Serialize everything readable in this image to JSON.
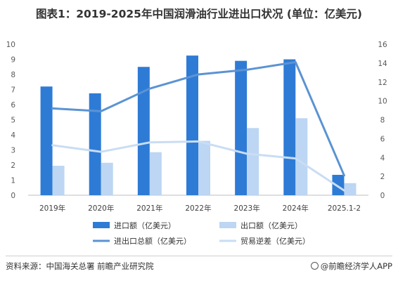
{
  "chart_data": {
    "type": "bar",
    "title": "图表1：2019-2025年中国润滑油行业进出口状况 (单位：亿美元)",
    "categories": [
      "2019年",
      "2020年",
      "2021年",
      "2022年",
      "2023年",
      "2024年",
      "2025.1-2"
    ],
    "y_left": {
      "min": 0,
      "max": 10,
      "ticks": [
        0,
        1,
        2,
        3,
        4,
        5,
        6,
        7,
        8,
        9,
        10
      ]
    },
    "y_right": {
      "min": 0,
      "max": 16,
      "ticks": [
        0,
        2,
        4,
        6,
        8,
        10,
        12,
        14,
        16
      ]
    },
    "bars": [
      {
        "name": "进口额（亿美元）",
        "axis": "left",
        "color": "#2e7bd6",
        "values": [
          7.2,
          6.75,
          8.5,
          9.25,
          8.9,
          9.0,
          1.35
        ]
      },
      {
        "name": "出口额（亿美元）",
        "axis": "left",
        "color": "#bcd6f3",
        "values": [
          1.95,
          2.15,
          2.85,
          3.6,
          4.45,
          5.1,
          0.8
        ]
      }
    ],
    "lines": [
      {
        "name": "进出口总额（亿美元）",
        "axis": "right",
        "color": "#5b93d3",
        "values": [
          9.2,
          8.9,
          11.3,
          12.8,
          13.3,
          14.1,
          2.1
        ]
      },
      {
        "name": "贸易逆差（亿美元）",
        "axis": "right",
        "color": "#c9ddf3",
        "values": [
          5.3,
          4.6,
          5.6,
          5.7,
          4.4,
          3.9,
          0.5
        ]
      }
    ],
    "grid": false,
    "legend_position": "bottom"
  },
  "footer": {
    "source": "资料来源：中国海关总署 前瞻产业研究院",
    "brand": "@前瞻经济学人APP"
  },
  "icons": {
    "brand": "qianzhan-logo-icon"
  }
}
